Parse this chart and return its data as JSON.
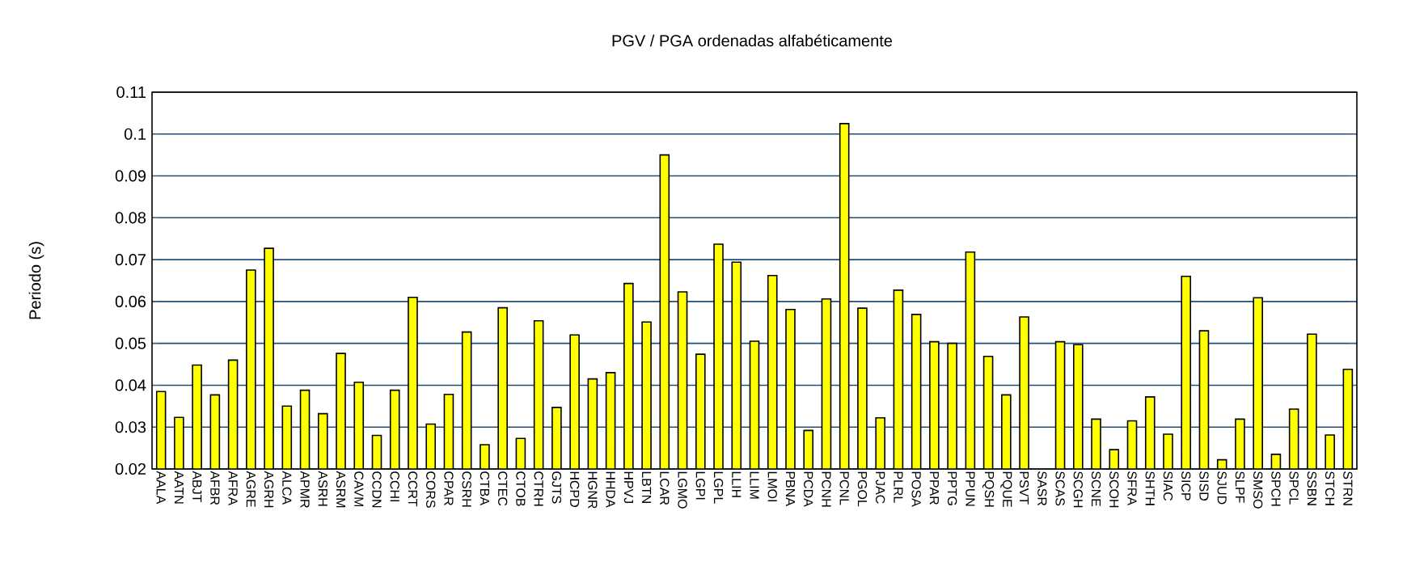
{
  "chart_data": {
    "type": "bar",
    "title": "PGV / PGA ordenadas alfabéticamente",
    "ylabel": "Periodo (s)",
    "categories": [
      "AALA",
      "AATN",
      "ABJT",
      "AFBR",
      "AFRA",
      "AGRE",
      "AGRH",
      "ALCA",
      "APMR",
      "ASRH",
      "ASRM",
      "CAVM",
      "CCDN",
      "CCHI",
      "CCRT",
      "CORS",
      "CPAR",
      "CSRH",
      "CTBA",
      "CTEC",
      "CTOB",
      "CTRH",
      "GJTS",
      "HCPD",
      "HGNR",
      "HHDA",
      "HPVJ",
      "LBTN",
      "LCAR",
      "LGMO",
      "LGPI",
      "LGPL",
      "LLIH",
      "LLIM",
      "LMOI",
      "PBNA",
      "PCDA",
      "PCNH",
      "PCNL",
      "PGOL",
      "PJAC",
      "PLRL",
      "POSA",
      "PPAR",
      "PPTG",
      "PPUN",
      "PQSH",
      "PQUE",
      "PSVT",
      "SASR",
      "SCAS",
      "SCGH",
      "SCNE",
      "SCOH",
      "SFRA",
      "SHTH",
      "SIAC",
      "SICP",
      "SISD",
      "SJUD",
      "SLPF",
      "SMSO",
      "SPCH",
      "SPCL",
      "SSBN",
      "STCH",
      "STRN"
    ],
    "values": [
      0.0385,
      0.0323,
      0.0448,
      0.0377,
      0.046,
      0.0675,
      0.0727,
      0.035,
      0.0388,
      0.0332,
      0.0476,
      0.0407,
      0.028,
      0.0388,
      0.061,
      0.0307,
      0.0378,
      0.0527,
      0.0258,
      0.0585,
      0.0273,
      0.0554,
      0.0347,
      0.052,
      0.0415,
      0.043,
      0.0643,
      0.0551,
      0.095,
      0.0623,
      0.0474,
      0.0737,
      0.0694,
      0.0505,
      0.0662,
      0.0581,
      0.0292,
      0.0606,
      0.1025,
      0.0584,
      0.0322,
      0.0627,
      0.0569,
      0.0504,
      0.05,
      0.0718,
      0.0469,
      0.0377,
      0.0563,
      null,
      0.0504,
      0.0497,
      0.0319,
      0.0246,
      0.0315,
      0.0372,
      0.0283,
      0.066,
      0.053,
      0.0222,
      0.0319,
      0.0609,
      0.0235,
      0.0343,
      0.0522,
      0.0281,
      0.0438
    ],
    "color": "#ffff00",
    "ylim": [
      0.02,
      0.11
    ],
    "yticks": [
      0.02,
      0.03,
      0.04,
      0.05,
      0.06,
      0.07,
      0.08,
      0.09,
      0.1,
      0.11
    ],
    "grid": "y"
  }
}
